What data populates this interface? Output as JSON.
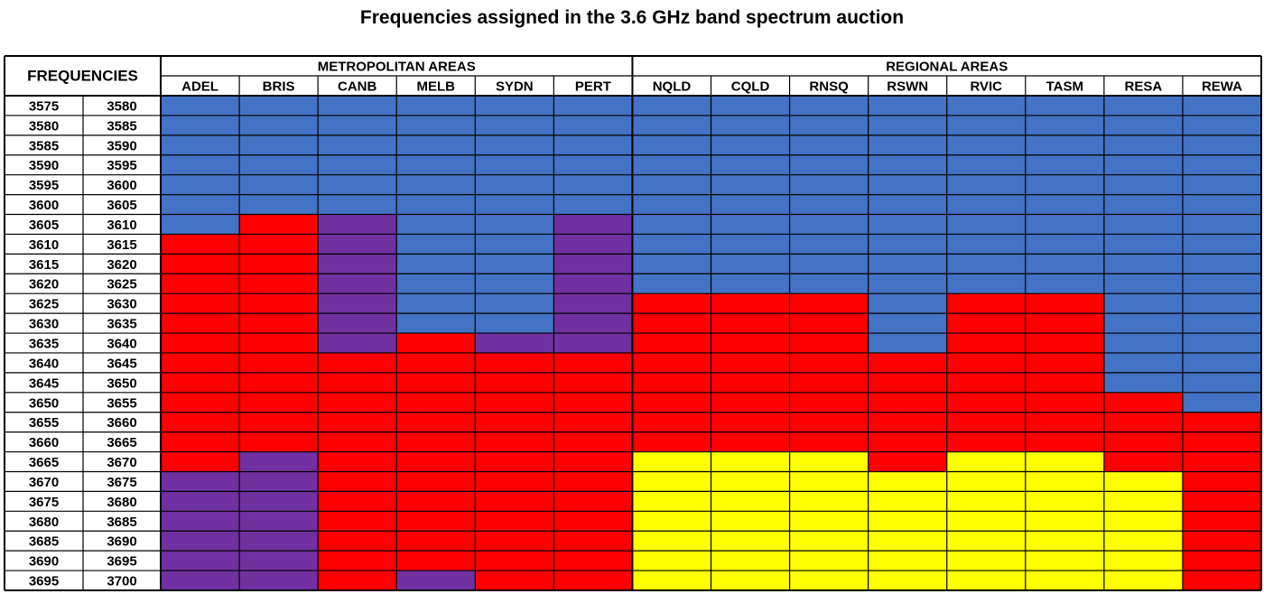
{
  "title": "Frequencies assigned in the 3.6 GHz band spectrum auction",
  "colors": {
    "B": "#4472C4",
    "R": "#FF0000",
    "P": "#7030A0",
    "Y": "#FFFF00"
  },
  "chart_data": {
    "type": "heatmap",
    "title": "Frequencies assigned in the 3.6 GHz band spectrum auction",
    "freq_header": "FREQUENCIES",
    "groups": [
      {
        "label": "METROPOLITAN AREAS",
        "span": 6
      },
      {
        "label": "REGIONAL AREAS",
        "span": 8
      }
    ],
    "columns": [
      "ADEL",
      "BRIS",
      "CANB",
      "MELB",
      "SYDN",
      "PERT",
      "NQLD",
      "CQLD",
      "RNSQ",
      "RSWN",
      "RVIC",
      "TASM",
      "RESA",
      "REWA"
    ],
    "freq_from": [
      "3575",
      "3580",
      "3585",
      "3590",
      "3595",
      "3600",
      "3605",
      "3610",
      "3615",
      "3620",
      "3625",
      "3630",
      "3635",
      "3640",
      "3645",
      "3650",
      "3655",
      "3660",
      "3665",
      "3670",
      "3675",
      "3680",
      "3685",
      "3690",
      "3695"
    ],
    "freq_to": [
      "3580",
      "3585",
      "3590",
      "3595",
      "3600",
      "3605",
      "3610",
      "3615",
      "3620",
      "3625",
      "3630",
      "3635",
      "3640",
      "3645",
      "3650",
      "3655",
      "3660",
      "3665",
      "3670",
      "3675",
      "3680",
      "3685",
      "3690",
      "3695",
      "3700"
    ],
    "cells": [
      "BBBBBBBBBBBBBB",
      "BBBBBBBBBBBBBB",
      "BBBBBBBBBBBBBB",
      "BBBBBBBBBBBBBB",
      "BBBBBBBBBBBBBB",
      "BBBBBBBBBBBBBB",
      "BRPBBPBBBBBBBB",
      "RRPBBPBBBBBBBB",
      "RRPBBPBBBBBBBB",
      "RRPBBPBBBBBBBB",
      "RRPBBPRRRBRRBB",
      "RRPBBPRRRBRRBB",
      "RRPRPPRRRBRRBB",
      "RRRRRRRRRRRRBB",
      "RRRRRRRRRRRRBB",
      "RRRRRRRRRRRRRB",
      "RRRRRRRRRRRRRR",
      "RRRRRRRRRRRRRR",
      "RPRRRRYYYRYYRR",
      "PPRRRRYYYYYYYR",
      "PPRRRRYYYYYYYR",
      "PPRRRRYYYYYYYR",
      "PPRRRRYYYYYYYR",
      "PPRRRRYYYYYYYR",
      "PPRPRRYYYYYYYR"
    ]
  }
}
